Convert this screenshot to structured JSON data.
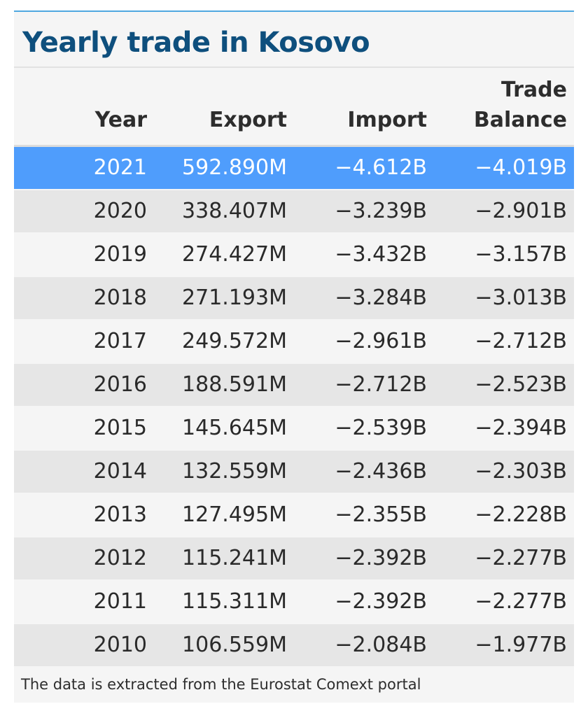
{
  "title": "Yearly trade in Kosovo",
  "footnote": "The data is extracted from the Eurostat Comext portal",
  "colors": {
    "title": "#0e4f7d",
    "top_border": "#4fa8e0",
    "highlight_row": "#4f9dfc",
    "row_odd": "#f5f5f5",
    "row_even": "#e6e6e6"
  },
  "highlighted_year": "2021",
  "chart_data": {
    "type": "table",
    "title": "Yearly trade in Kosovo",
    "columns": [
      "Year",
      "Export",
      "Import",
      "Trade Balance"
    ],
    "header_lines": {
      "year": [
        "Year"
      ],
      "export": [
        "Export"
      ],
      "import": [
        "Import"
      ],
      "balance": [
        "Trade",
        "Balance"
      ]
    },
    "rows": [
      [
        "2021",
        "592.890M",
        "−4.612B",
        "−4.019B"
      ],
      [
        "2020",
        "338.407M",
        "−3.239B",
        "−2.901B"
      ],
      [
        "2019",
        "274.427M",
        "−3.432B",
        "−3.157B"
      ],
      [
        "2018",
        "271.193M",
        "−3.284B",
        "−3.013B"
      ],
      [
        "2017",
        "249.572M",
        "−2.961B",
        "−2.712B"
      ],
      [
        "2016",
        "188.591M",
        "−2.712B",
        "−2.523B"
      ],
      [
        "2015",
        "145.645M",
        "−2.539B",
        "−2.394B"
      ],
      [
        "2014",
        "132.559M",
        "−2.436B",
        "−2.303B"
      ],
      [
        "2013",
        "127.495M",
        "−2.355B",
        "−2.228B"
      ],
      [
        "2012",
        "115.241M",
        "−2.392B",
        "−2.277B"
      ],
      [
        "2011",
        "115.311M",
        "−2.392B",
        "−2.277B"
      ],
      [
        "2010",
        "106.559M",
        "−2.084B",
        "−1.977B"
      ]
    ],
    "source": "The data is extracted from the Eurostat Comext portal"
  }
}
